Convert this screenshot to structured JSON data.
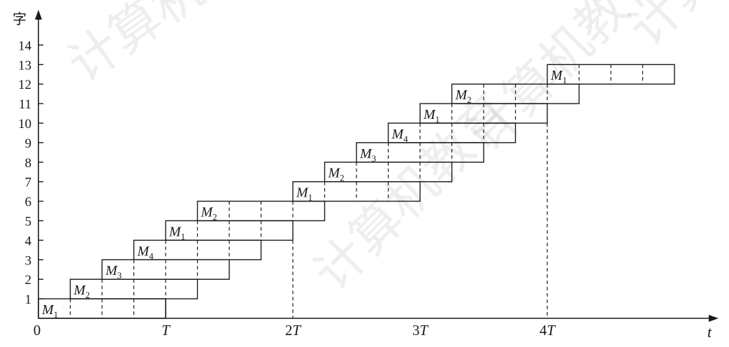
{
  "axes": {
    "y_label": "字",
    "x_label": "t",
    "y_ticks": [
      "1",
      "2",
      "3",
      "4",
      "5",
      "6",
      "7",
      "8",
      "9",
      "10",
      "11",
      "12",
      "13",
      "14"
    ],
    "x_ticks": [
      {
        "label": "0",
        "value": 0
      },
      {
        "label": "T",
        "value": 1
      },
      {
        "label": "2T",
        "value": 2
      },
      {
        "label": "3T",
        "value": 3
      },
      {
        "label": "4T",
        "value": 4
      }
    ]
  },
  "diagram": {
    "period_slots": 4,
    "words": [
      {
        "index": 0,
        "label": "M",
        "sub": "1",
        "start_slot": 0,
        "slots": 4
      },
      {
        "index": 1,
        "label": "M",
        "sub": "2",
        "start_slot": 1,
        "slots": 4
      },
      {
        "index": 2,
        "label": "M",
        "sub": "3",
        "start_slot": 2,
        "slots": 4
      },
      {
        "index": 3,
        "label": "M",
        "sub": "4",
        "start_slot": 3,
        "slots": 4
      },
      {
        "index": 4,
        "label": "M",
        "sub": "1",
        "start_slot": 4,
        "slots": 4
      },
      {
        "index": 5,
        "label": "M",
        "sub": "2",
        "start_slot": 5,
        "slots": 4
      },
      {
        "index": 6,
        "label": "M",
        "sub": "1",
        "start_slot": 8,
        "slots": 4
      },
      {
        "index": 7,
        "label": "M",
        "sub": "2",
        "start_slot": 9,
        "slots": 4
      },
      {
        "index": 8,
        "label": "M",
        "sub": "3",
        "start_slot": 10,
        "slots": 4
      },
      {
        "index": 9,
        "label": "M",
        "sub": "4",
        "start_slot": 11,
        "slots": 4
      },
      {
        "index": 10,
        "label": "M",
        "sub": "1",
        "start_slot": 12,
        "slots": 4
      },
      {
        "index": 11,
        "label": "M",
        "sub": "2",
        "start_slot": 13,
        "slots": 4
      },
      {
        "index": 12,
        "label": "M",
        "sub": "1",
        "start_slot": 16,
        "slots": 4
      }
    ]
  },
  "watermark": {
    "text": "计算机教育"
  }
}
